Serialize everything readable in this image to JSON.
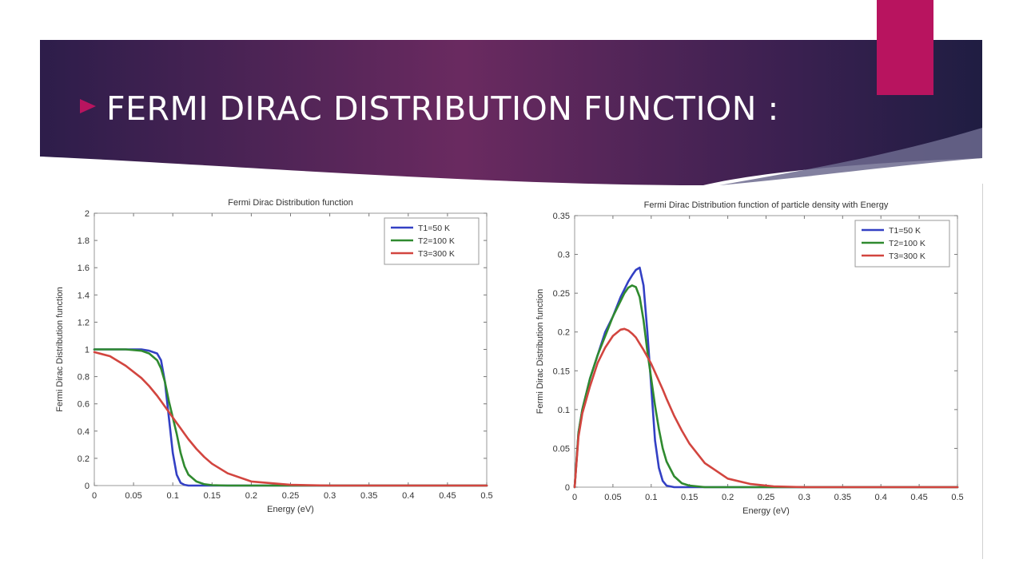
{
  "slide": {
    "title": "FERMI DIRAC DISTRIBUTION FUNCTION :",
    "colors": {
      "banner_left": "#2d1d4a",
      "banner_mid": "#6a2a60",
      "banner_right": "#1f1d42",
      "accent": "#b8145f",
      "arrow": "#b8145f"
    }
  },
  "chart_data": [
    {
      "type": "line",
      "title": "Fermi Dirac Distribution function",
      "xlabel": "Energy (eV)",
      "ylabel": "Fermi Dirac Distribution function",
      "xlim": [
        0,
        0.5
      ],
      "ylim": [
        0,
        2
      ],
      "xticks": [
        "0",
        "0.05",
        "0.1",
        "0.15",
        "0.2",
        "0.25",
        "0.3",
        "0.35",
        "0.4",
        "0.45",
        "0.5"
      ],
      "yticks": [
        "0",
        "0.2",
        "0.4",
        "0.6",
        "0.8",
        "1",
        "1.2",
        "1.4",
        "1.6",
        "1.8",
        "2"
      ],
      "legend_position": "top-right",
      "grid": false,
      "x": [
        0,
        0.02,
        0.04,
        0.06,
        0.07,
        0.08,
        0.085,
        0.09,
        0.095,
        0.1,
        0.105,
        0.11,
        0.115,
        0.12,
        0.13,
        0.14,
        0.15,
        0.17,
        0.2,
        0.25,
        0.3,
        0.4,
        0.5
      ],
      "series": [
        {
          "name": "T1=50 K",
          "color": "#3340c4",
          "values": [
            1,
            1,
            1,
            1,
            0.99,
            0.97,
            0.92,
            0.76,
            0.5,
            0.24,
            0.08,
            0.02,
            0.005,
            0,
            0,
            0,
            0,
            0,
            0,
            0,
            0,
            0,
            0
          ]
        },
        {
          "name": "T2=100 K",
          "color": "#2f8a2f",
          "values": [
            1,
            1,
            1,
            0.99,
            0.97,
            0.92,
            0.86,
            0.76,
            0.62,
            0.5,
            0.38,
            0.24,
            0.14,
            0.08,
            0.03,
            0.01,
            0.003,
            0,
            0,
            0,
            0,
            0,
            0
          ]
        },
        {
          "name": "T3=300 K",
          "color": "#d2453f",
          "values": [
            0.98,
            0.95,
            0.88,
            0.79,
            0.73,
            0.66,
            0.62,
            0.58,
            0.54,
            0.5,
            0.46,
            0.42,
            0.38,
            0.34,
            0.27,
            0.21,
            0.16,
            0.09,
            0.03,
            0.005,
            0,
            0,
            0
          ]
        }
      ]
    },
    {
      "type": "line",
      "title": "Fermi Dirac Distribution function of particle density with Energy",
      "xlabel": "Energy (eV)",
      "ylabel": "Fermi Dirac Distribution function",
      "xlim": [
        0,
        0.5
      ],
      "ylim": [
        0,
        0.35
      ],
      "xticks": [
        "0",
        "0.05",
        "0.1",
        "0.15",
        "0.2",
        "0.25",
        "0.3",
        "0.35",
        "0.4",
        "0.45",
        "0.5"
      ],
      "yticks": [
        "0",
        "0.05",
        "0.1",
        "0.15",
        "0.2",
        "0.25",
        "0.3",
        "0.35"
      ],
      "legend_position": "top-right",
      "grid": false,
      "x": [
        0,
        0.005,
        0.01,
        0.02,
        0.03,
        0.04,
        0.05,
        0.06,
        0.065,
        0.07,
        0.075,
        0.08,
        0.085,
        0.09,
        0.095,
        0.1,
        0.105,
        0.11,
        0.115,
        0.12,
        0.13,
        0.14,
        0.15,
        0.17,
        0.2,
        0.23,
        0.26,
        0.3,
        0.5
      ],
      "series": [
        {
          "name": "T1=50 K",
          "color": "#3340c4",
          "values": [
            0,
            0.07,
            0.1,
            0.14,
            0.17,
            0.2,
            0.22,
            0.245,
            0.255,
            0.265,
            0.273,
            0.28,
            0.283,
            0.26,
            0.2,
            0.13,
            0.06,
            0.025,
            0.008,
            0.002,
            0,
            0,
            0,
            0,
            0,
            0,
            0,
            0,
            0
          ]
        },
        {
          "name": "T2=100 K",
          "color": "#2f8a2f",
          "values": [
            0,
            0.07,
            0.1,
            0.14,
            0.17,
            0.195,
            0.22,
            0.24,
            0.25,
            0.257,
            0.26,
            0.258,
            0.245,
            0.215,
            0.175,
            0.14,
            0.105,
            0.075,
            0.05,
            0.033,
            0.014,
            0.005,
            0.002,
            0,
            0,
            0,
            0,
            0,
            0
          ]
        },
        {
          "name": "T3=300 K",
          "color": "#d2453f",
          "values": [
            0,
            0.065,
            0.095,
            0.13,
            0.16,
            0.18,
            0.195,
            0.203,
            0.204,
            0.202,
            0.198,
            0.193,
            0.185,
            0.177,
            0.168,
            0.159,
            0.148,
            0.137,
            0.126,
            0.114,
            0.092,
            0.073,
            0.056,
            0.031,
            0.011,
            0.004,
            0.001,
            0,
            0
          ]
        }
      ]
    }
  ]
}
